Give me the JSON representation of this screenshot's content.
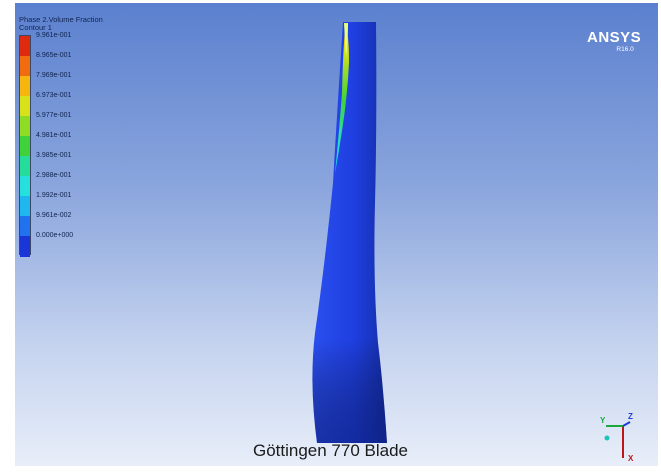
{
  "legend": {
    "title_line1": "Phase 2.Volume Fraction",
    "title_line2": "Contour 1",
    "ticks": [
      {
        "label": "9.961e-001",
        "color": "#e02a10"
      },
      {
        "label": "8.965e-001",
        "color": "#f26b0f"
      },
      {
        "label": "7.969e-001",
        "color": "#f6b60e"
      },
      {
        "label": "6.973e-001",
        "color": "#d7e21a"
      },
      {
        "label": "5.977e-001",
        "color": "#8fdc24"
      },
      {
        "label": "4.981e-001",
        "color": "#3fd23b"
      },
      {
        "label": "3.985e-001",
        "color": "#25dc9a"
      },
      {
        "label": "2.988e-001",
        "color": "#25e0dc"
      },
      {
        "label": "1.992e-001",
        "color": "#1fb7f0"
      },
      {
        "label": "9.961e-002",
        "color": "#2172ef"
      },
      {
        "label": "0.000e+000",
        "color": "#1b36d8"
      }
    ]
  },
  "logo": {
    "brand": "ANSYS",
    "version": "R16.0"
  },
  "caption": "Göttingen 770 Blade",
  "axes": {
    "y": "Y",
    "z": "Z",
    "x": "X"
  },
  "colors": {
    "blade": "#1f3fe0",
    "blade_shadow": "#102a9c",
    "background_top": "#5b80cf",
    "background_bottom": "#e8eef9"
  }
}
